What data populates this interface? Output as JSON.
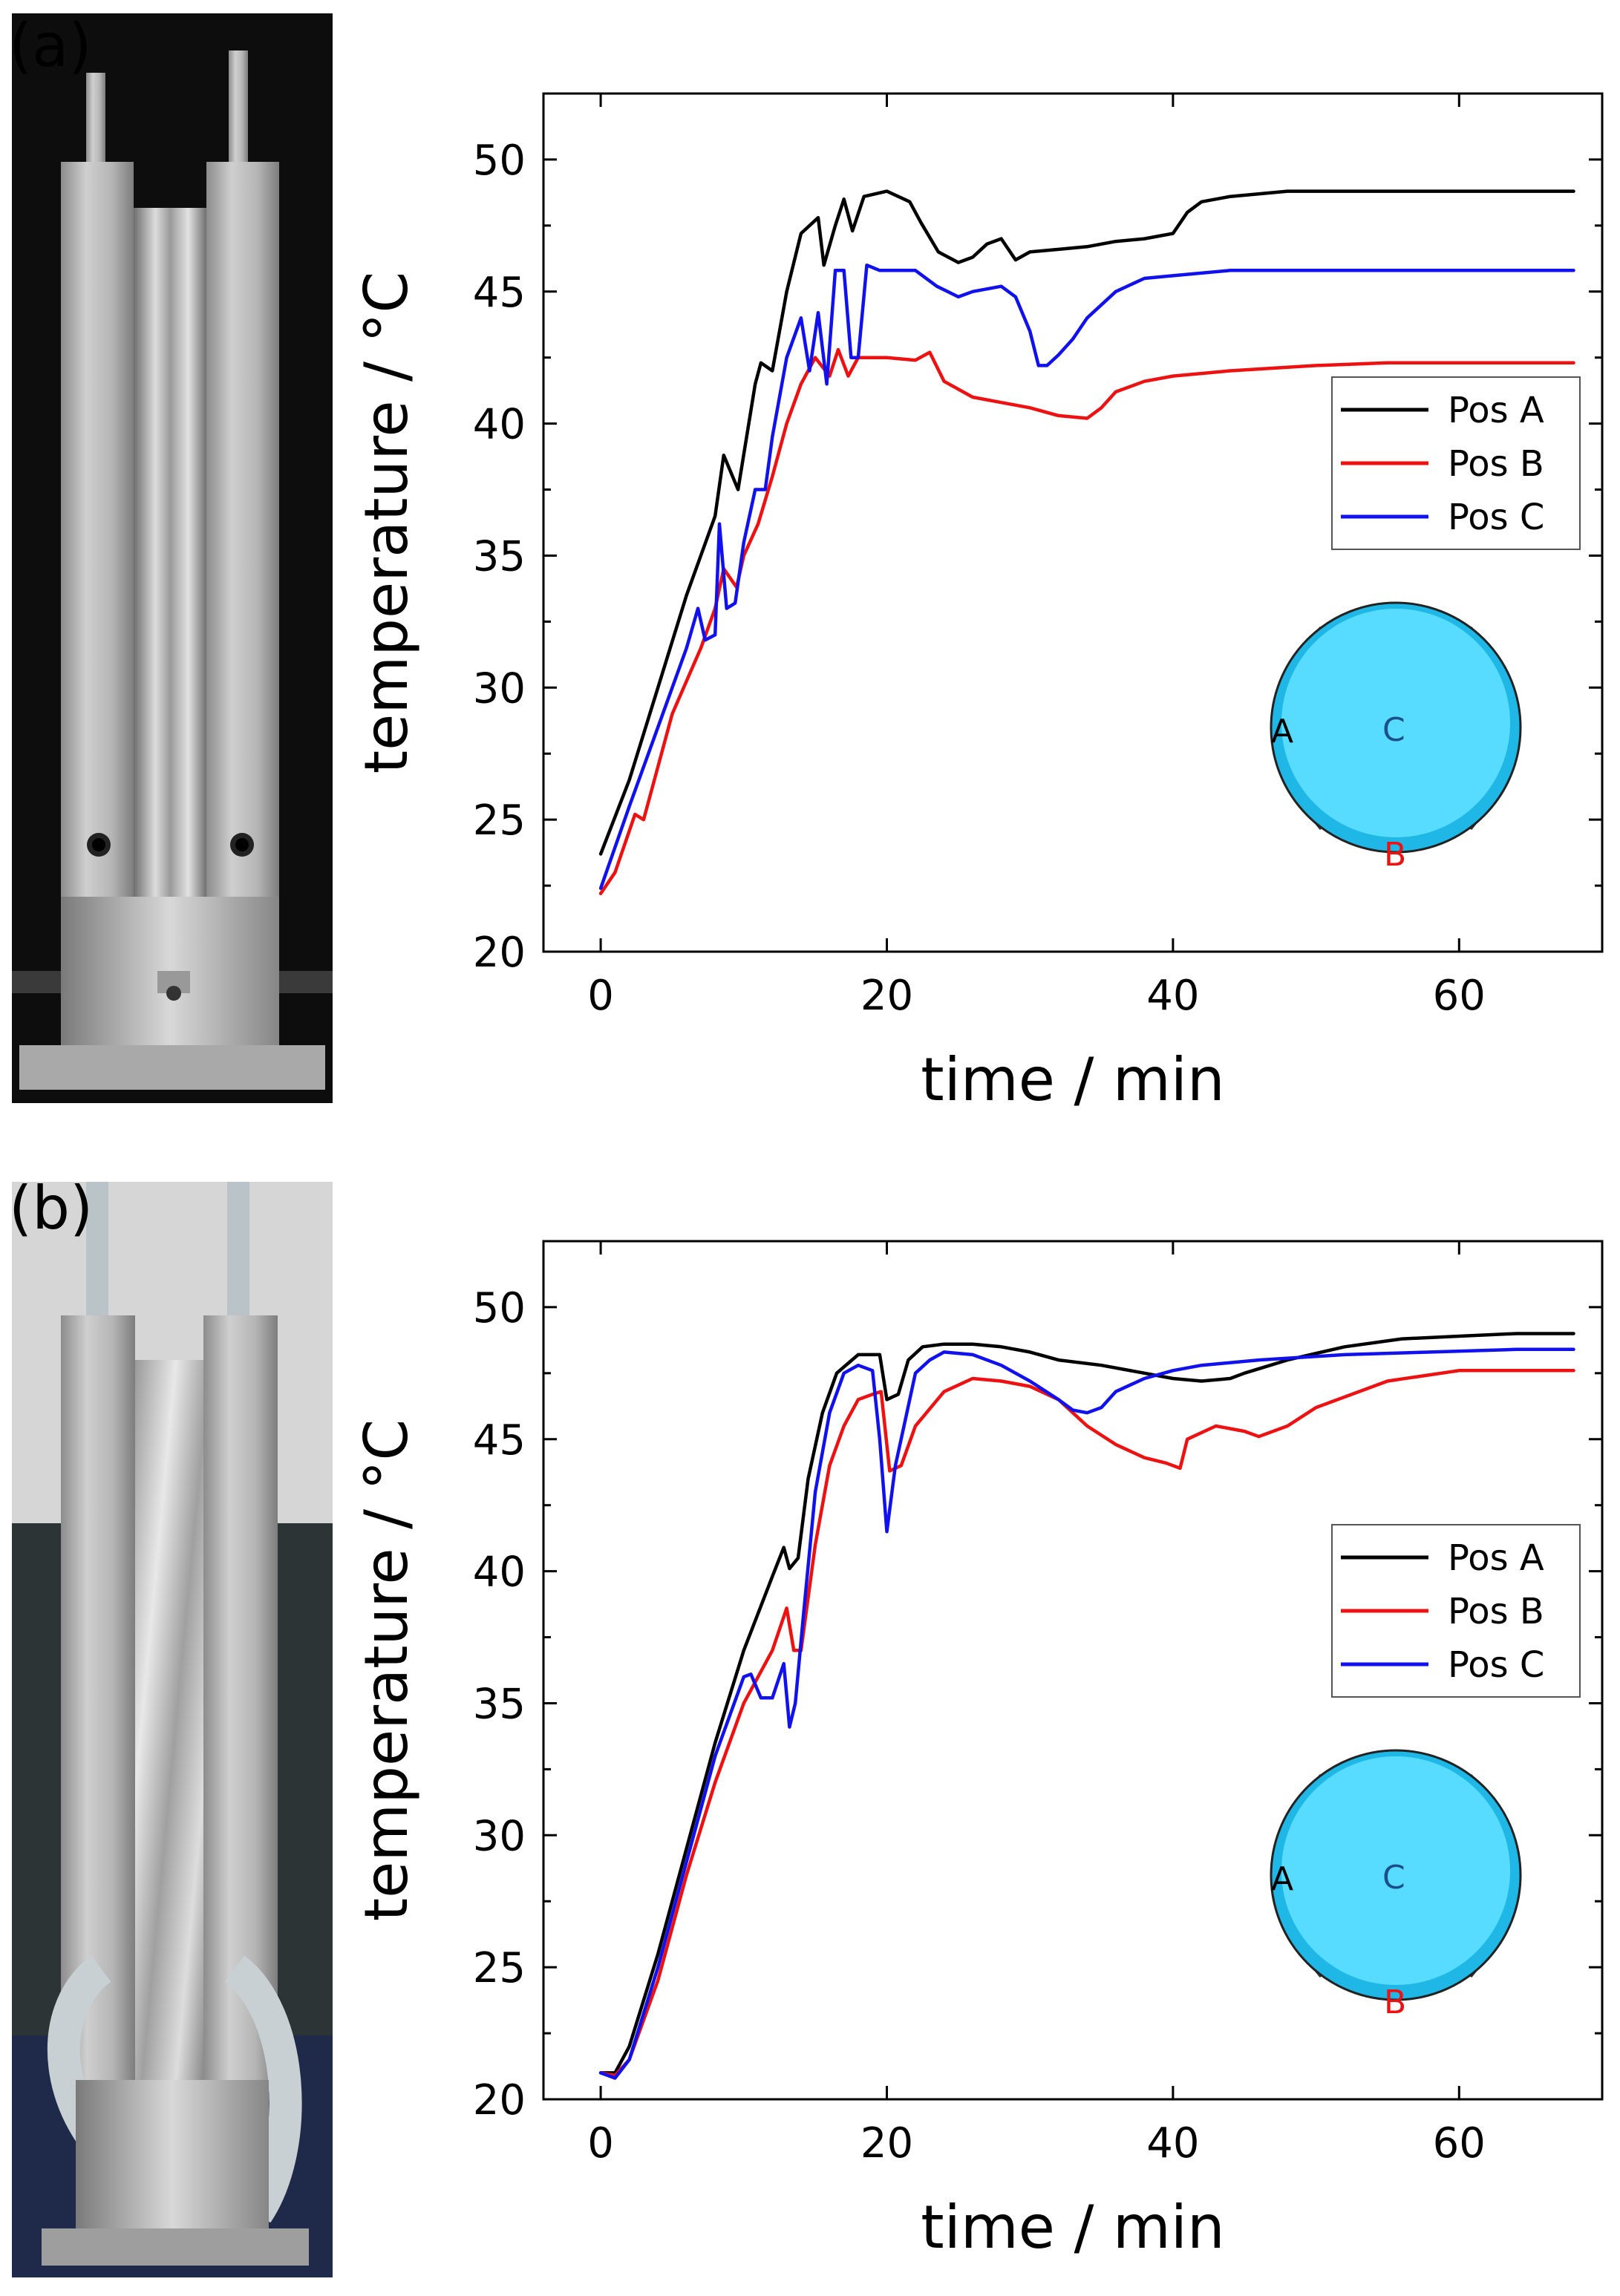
{
  "panels": [
    {
      "label": "(a)"
    },
    {
      "label": "(b)"
    }
  ],
  "chart_data": [
    {
      "type": "line",
      "panel": "(a)",
      "xlabel": "time / min",
      "ylabel": "temperature / °C",
      "xlim": [
        -4,
        70
      ],
      "ylim": [
        20,
        52.5
      ],
      "xticks": [
        0,
        20,
        40,
        60
      ],
      "yticks": [
        20,
        25,
        30,
        35,
        40,
        45,
        50
      ],
      "legend": {
        "position": "middle-right",
        "entries": [
          "Pos A",
          "Pos B",
          "Pos C"
        ]
      },
      "inset": {
        "labels": [
          "A",
          "B",
          "C"
        ]
      },
      "series": [
        {
          "name": "Pos A",
          "color": "#000000",
          "x": [
            0,
            2,
            4,
            6,
            8,
            8.6,
            9.6,
            10.8,
            11.2,
            12,
            13,
            14,
            14.8,
            15.2,
            15.6,
            16.4,
            17,
            17.6,
            18.4,
            20,
            21.6,
            22.4,
            23.6,
            25,
            26,
            27,
            28,
            29,
            30,
            32,
            34,
            36,
            38,
            40,
            41,
            42,
            44,
            48,
            55,
            62,
            68
          ],
          "y": [
            23.7,
            26.5,
            30,
            33.5,
            36.5,
            38.8,
            37.5,
            41.5,
            42.3,
            42,
            45,
            47.2,
            47.6,
            47.8,
            46,
            47.5,
            48.5,
            47.3,
            48.6,
            48.8,
            48.4,
            47.6,
            46.5,
            46.1,
            46.3,
            46.8,
            47,
            46.2,
            46.5,
            46.6,
            46.7,
            46.9,
            47,
            47.2,
            48,
            48.4,
            48.6,
            48.8,
            48.8,
            48.8,
            48.8
          ]
        },
        {
          "name": "Pos B",
          "color": "#ee1111",
          "x": [
            0,
            1,
            2.4,
            3,
            5,
            7,
            8,
            8.6,
            9.5,
            10,
            11,
            12,
            13,
            14,
            15,
            16,
            16.6,
            17.3,
            18,
            20,
            22,
            23,
            24,
            26,
            28,
            30,
            32,
            34,
            35,
            36,
            38,
            40,
            44,
            50,
            55,
            60,
            68
          ],
          "y": [
            22.2,
            23,
            25.2,
            25,
            29,
            31.5,
            33,
            34.5,
            33.8,
            35,
            36.2,
            38,
            40,
            41.5,
            42.5,
            41.8,
            42.8,
            41.8,
            42.5,
            42.5,
            42.4,
            42.7,
            41.6,
            41,
            40.8,
            40.6,
            40.3,
            40.2,
            40.6,
            41.2,
            41.6,
            41.8,
            42,
            42.2,
            42.3,
            42.3,
            42.3
          ]
        },
        {
          "name": "Pos C",
          "color": "#1111ee",
          "x": [
            0,
            2,
            4,
            6,
            6.8,
            7.3,
            8,
            8.3,
            8.8,
            9.4,
            10,
            10.8,
            11.5,
            12,
            13,
            14,
            14.6,
            15.2,
            15.8,
            16.4,
            17,
            17.5,
            18,
            18.6,
            19.5,
            22,
            23.5,
            25,
            26,
            28,
            29,
            30,
            30.6,
            31.2,
            32,
            33,
            34,
            36,
            38,
            40,
            44,
            50,
            56,
            62,
            68
          ],
          "y": [
            22.4,
            25.5,
            28.5,
            31.5,
            33,
            31.8,
            32,
            36.2,
            33,
            33.2,
            35.5,
            37.5,
            37.5,
            39.5,
            42.5,
            44,
            42,
            44.2,
            41.5,
            45.8,
            45.8,
            42.5,
            42.5,
            46,
            45.8,
            45.8,
            45.2,
            44.8,
            45,
            45.2,
            44.8,
            43.5,
            42.2,
            42.2,
            42.6,
            43.2,
            44,
            45,
            45.5,
            45.6,
            45.8,
            45.8,
            45.8,
            45.8,
            45.8
          ]
        }
      ]
    },
    {
      "type": "line",
      "panel": "(b)",
      "xlabel": "time / min",
      "ylabel": "temperature / °C",
      "xlim": [
        -4,
        70
      ],
      "ylim": [
        20,
        52.5
      ],
      "xticks": [
        0,
        20,
        40,
        60
      ],
      "yticks": [
        20,
        25,
        30,
        35,
        40,
        45,
        50
      ],
      "legend": {
        "position": "middle-right",
        "entries": [
          "Pos A",
          "Pos B",
          "Pos C"
        ]
      },
      "inset": {
        "labels": [
          "A",
          "B",
          "C"
        ]
      },
      "series": [
        {
          "name": "Pos A",
          "color": "#000000",
          "x": [
            0,
            1,
            2,
            4,
            6,
            8,
            10,
            12,
            12.8,
            13.2,
            13.8,
            14.5,
            15.5,
            16.5,
            18,
            19.5,
            20,
            20.8,
            21.5,
            22.5,
            24,
            26,
            28,
            30,
            32,
            35,
            38,
            40,
            42,
            44,
            45,
            48,
            52,
            56,
            60,
            64,
            68
          ],
          "y": [
            21,
            21,
            22,
            25.5,
            29.5,
            33.5,
            37,
            39.8,
            40.9,
            40.1,
            40.5,
            43.5,
            46,
            47.5,
            48.2,
            48.2,
            46.5,
            46.7,
            48,
            48.5,
            48.6,
            48.6,
            48.5,
            48.3,
            48,
            47.8,
            47.5,
            47.3,
            47.2,
            47.3,
            47.5,
            48,
            48.5,
            48.8,
            48.9,
            49,
            49
          ]
        },
        {
          "name": "Pos B",
          "color": "#ee1111",
          "x": [
            0,
            1,
            2,
            4,
            6,
            8,
            10,
            12,
            13,
            13.5,
            14,
            15,
            16,
            17,
            18,
            19,
            19.6,
            20.2,
            21,
            22,
            24,
            26,
            28,
            30,
            32,
            34,
            36,
            38,
            39.5,
            40.5,
            41,
            43,
            45,
            46,
            48,
            50,
            55,
            60,
            64,
            68
          ],
          "y": [
            21,
            20.9,
            21.5,
            24.5,
            28.5,
            32,
            35,
            37,
            38.6,
            37,
            37,
            41,
            44,
            45.5,
            46.5,
            46.7,
            46.8,
            43.8,
            44,
            45.5,
            46.8,
            47.3,
            47.2,
            47,
            46.5,
            45.5,
            44.8,
            44.3,
            44.1,
            43.9,
            45,
            45.5,
            45.3,
            45.1,
            45.5,
            46.2,
            47.2,
            47.6,
            47.6,
            47.6
          ]
        },
        {
          "name": "Pos C",
          "color": "#1111ee",
          "x": [
            0,
            1,
            2,
            4,
            6,
            8,
            10,
            10.5,
            11.2,
            12,
            12.8,
            13.2,
            13.6,
            14.2,
            15,
            16,
            17,
            18,
            19,
            19.5,
            20,
            20.6,
            21.2,
            22,
            23,
            24,
            26,
            28,
            30,
            32,
            33,
            34,
            35,
            36,
            38,
            40,
            42,
            46,
            52,
            58,
            64,
            68
          ],
          "y": [
            21,
            20.8,
            21.5,
            25,
            29,
            33,
            36,
            36.1,
            35.2,
            35.2,
            36.5,
            34.1,
            35,
            38.5,
            43,
            46,
            47.5,
            47.8,
            47.6,
            45,
            41.5,
            44,
            45.5,
            47.5,
            48,
            48.3,
            48.2,
            47.8,
            47.2,
            46.5,
            46.1,
            46,
            46.2,
            46.8,
            47.3,
            47.6,
            47.8,
            48,
            48.2,
            48.3,
            48.4,
            48.4
          ]
        }
      ]
    }
  ]
}
